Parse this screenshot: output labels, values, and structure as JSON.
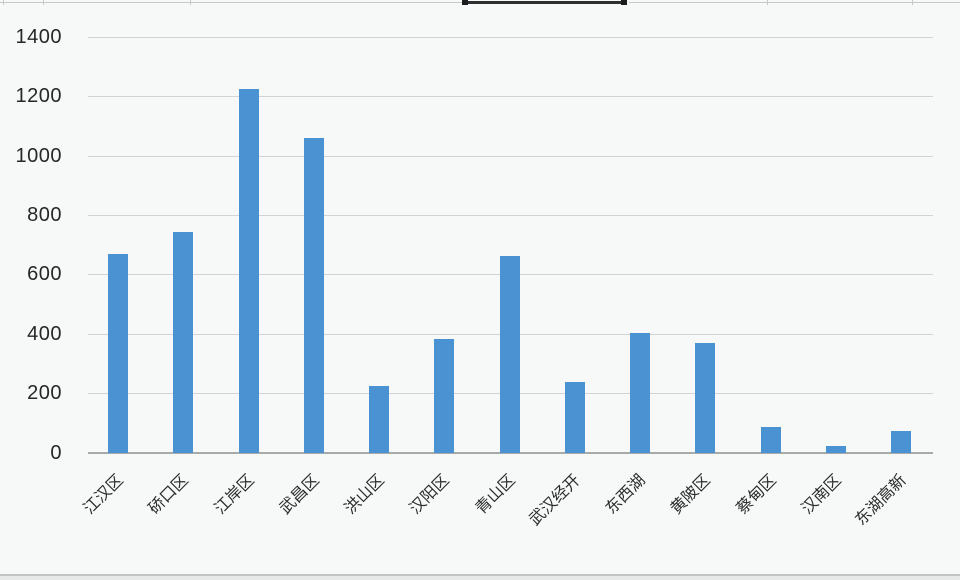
{
  "chart_data": {
    "type": "bar",
    "title": "",
    "xlabel": "",
    "ylabel": "",
    "categories": [
      "江汉区",
      "硚口区",
      "江岸区",
      "武昌区",
      "洪山区",
      "汉阳区",
      "青山区",
      "武汉经开",
      "东西湖",
      "黄陂区",
      "蔡甸区",
      "汉南区",
      "东湖高新"
    ],
    "values": [
      670,
      745,
      1225,
      1060,
      225,
      385,
      665,
      240,
      405,
      370,
      88,
      25,
      75
    ],
    "ylim": [
      0,
      1400
    ],
    "yticks": [
      0,
      200,
      400,
      600,
      800,
      1000,
      1200,
      1400
    ],
    "grid": true,
    "legend": false,
    "bar_color": "#4a92d2",
    "gridline_color": "#d2d3d3",
    "axis_line_color": "#a8aaaa",
    "background_color": "#f7f8f8"
  }
}
